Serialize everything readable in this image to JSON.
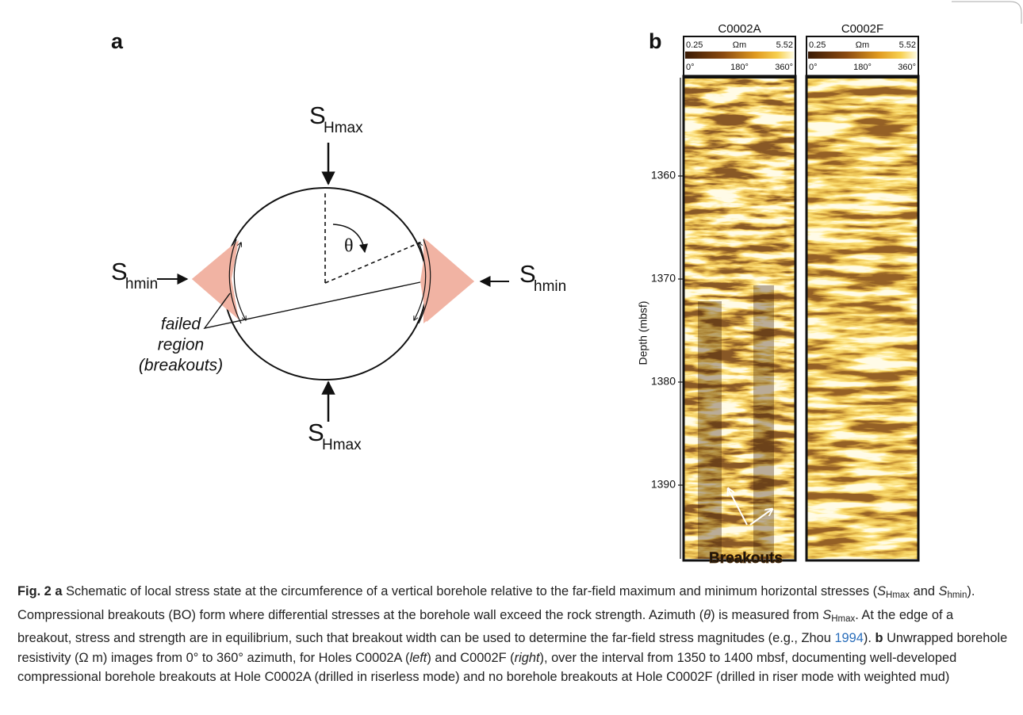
{
  "panel_a": {
    "label": "a",
    "s_hmax_top": {
      "symbol": "S",
      "subscript": "Hmax"
    },
    "s_hmax_bottom": {
      "symbol": "S",
      "subscript": "Hmax"
    },
    "s_hmin_left": {
      "symbol": "S",
      "subscript": "hmin"
    },
    "s_hmin_right": {
      "symbol": "S",
      "subscript": "hmin"
    },
    "theta": "θ",
    "failed_region": [
      "failed",
      "region",
      "(breakouts)"
    ]
  },
  "panel_b": {
    "label": "b",
    "images": [
      {
        "title": "C0002A",
        "colorbar": {
          "min": 0.25,
          "unit": "Ωm",
          "max": 5.52
        },
        "azimuth": [
          "0°",
          "180°",
          "360°"
        ],
        "annotation": "Breakouts"
      },
      {
        "title": "C0002F",
        "colorbar": {
          "min": 0.25,
          "unit": "Ωm",
          "max": 5.52
        },
        "azimuth": [
          "0°",
          "180°",
          "360°"
        ]
      }
    ],
    "y_axis_label": "Depth (mbsf)",
    "depth_ticks": [
      1360,
      1370,
      1380,
      1390
    ]
  },
  "caption": [
    "Fig. 2",
    "a",
    "Schematic of local stress state at the circumference of a vertical borehole relative to the far-field maximum and minimum horizontal stresses (",
    "S",
    "Hmax",
    " and ",
    "S",
    "hmin",
    "). Compressional breakouts (BO) form where differential stresses at the borehole wall exceed the rock strength. Azimuth (",
    "θ",
    ") is measured from ",
    "S",
    "Hmax",
    ". At the edge of a breakout, stress and strength are in equilibrium, such that breakout width can be used to determine the far-field stress magnitudes (e.g., Zhou ",
    "1994",
    ").",
    "b",
    "Unwrapped borehole resistivity (Ω m) images from 0° to 360° azimuth, for Holes C0002A (",
    "left",
    ") and C0002F (",
    "right",
    "), over the interval from 1350 to 1400 mbsf, documenting well-developed compressional borehole breakouts at Hole C0002A (drilled in riserless mode) and no borehole breakouts at Hole C0002F (drilled in riser mode with weighted mud)"
  ]
}
